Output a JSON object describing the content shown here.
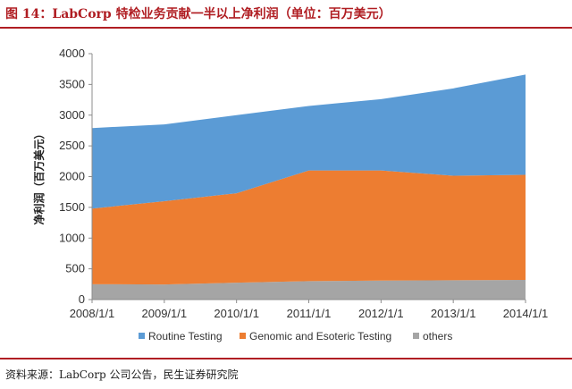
{
  "header": {
    "title": "图 14：LabCorp 特检业务贡献一半以上净利润（单位：百万美元）"
  },
  "footer": {
    "source": "资料来源：LabCorp 公司公告，民生证券研究院"
  },
  "chart_data": {
    "type": "area",
    "stacked": true,
    "title": "",
    "xlabel": "",
    "ylabel": "净利润（百万美元）",
    "ylim": [
      0,
      4000
    ],
    "yticks": [
      0,
      500,
      1000,
      1500,
      2000,
      2500,
      3000,
      3500,
      4000
    ],
    "x": [
      "2008/1/1",
      "2009/1/1",
      "2010/1/1",
      "2011/1/1",
      "2012/1/1",
      "2013/1/1",
      "2014/1/1"
    ],
    "grid": false,
    "legend": "bottom",
    "series": [
      {
        "name": "others",
        "color": "#a5a5a5",
        "values": [
          250,
          245,
          275,
          300,
          310,
          315,
          320
        ]
      },
      {
        "name": "Genomic and Esoteric Testing",
        "color": "#ed7d31",
        "values": [
          1230,
          1355,
          1455,
          1800,
          1790,
          1700,
          1710
        ]
      },
      {
        "name": "Routine Testing",
        "color": "#5b9bd5",
        "values": [
          1310,
          1250,
          1270,
          1050,
          1160,
          1420,
          1630
        ]
      }
    ],
    "legend_order": [
      "Routine Testing",
      "Genomic and Esoteric Testing",
      "others"
    ]
  }
}
